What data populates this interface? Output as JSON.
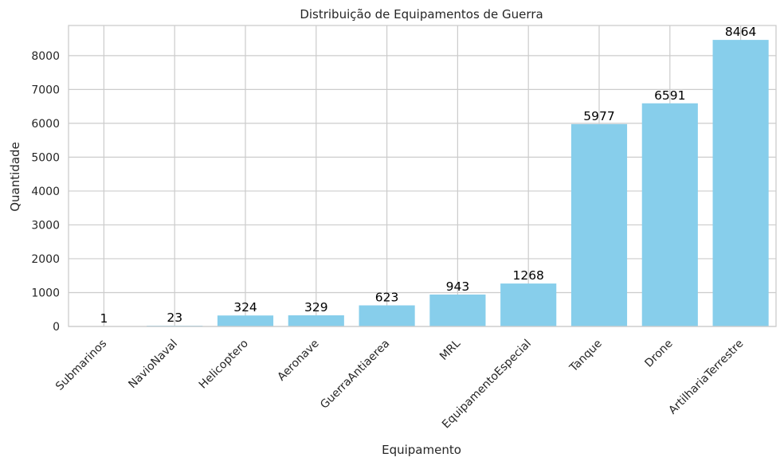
{
  "chart_data": {
    "type": "bar",
    "title": "Distribuição de Equipamentos de Guerra",
    "xlabel": "Equipamento",
    "ylabel": "Quantidade",
    "categories": [
      "Submarinos",
      "NavioNaval",
      "Helicoptero",
      "Aeronave",
      "GuerraAntiaerea",
      "MRL",
      "EquipamentoEspecial",
      "Tanque",
      "Drone",
      "ArtilhariaTerrestre"
    ],
    "values": [
      1,
      23,
      324,
      329,
      623,
      943,
      1268,
      5977,
      6591,
      8464
    ],
    "ylim": [
      0,
      8890
    ],
    "yticks": [
      0,
      1000,
      2000,
      3000,
      4000,
      5000,
      6000,
      7000,
      8000
    ],
    "grid": true,
    "bar_color": "#87ceeb",
    "grid_color": "#cccccc"
  }
}
